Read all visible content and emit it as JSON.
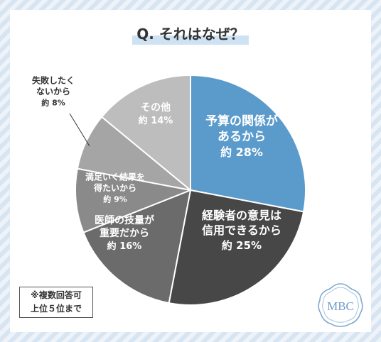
{
  "title": "Q. それはなぜ？",
  "chart_data": {
    "type": "pie",
    "title": "Q. それはなぜ？",
    "slices": [
      {
        "label_lines": [
          "予算の関係が",
          "あるから"
        ],
        "value_text": "約 28%",
        "value": 28,
        "color": "#5b9bcb"
      },
      {
        "label_lines": [
          "経験者の意見は",
          "信用できるから"
        ],
        "value_text": "約 25%",
        "value": 25,
        "color": "#474747"
      },
      {
        "label_lines": [
          "医師の技量が",
          "重要だから"
        ],
        "value_text": "約 16%",
        "value": 16,
        "color": "#6b6b6b"
      },
      {
        "label_lines": [
          "満足いく結果を",
          "得たいから"
        ],
        "value_text": "約 9%",
        "value": 9,
        "color": "#8a8a8a"
      },
      {
        "label_lines": [
          "失敗したく",
          "ないから"
        ],
        "value_text": "約 8%",
        "value": 8,
        "color": "#a5a5a5"
      },
      {
        "label_lines": [
          "その他"
        ],
        "value_text": "約 14%",
        "value": 14,
        "color": "#bdbdbd"
      }
    ]
  },
  "note": {
    "line1": "※複数回答可",
    "line2": "上位５位まで"
  },
  "logo": {
    "text": "MBC"
  }
}
